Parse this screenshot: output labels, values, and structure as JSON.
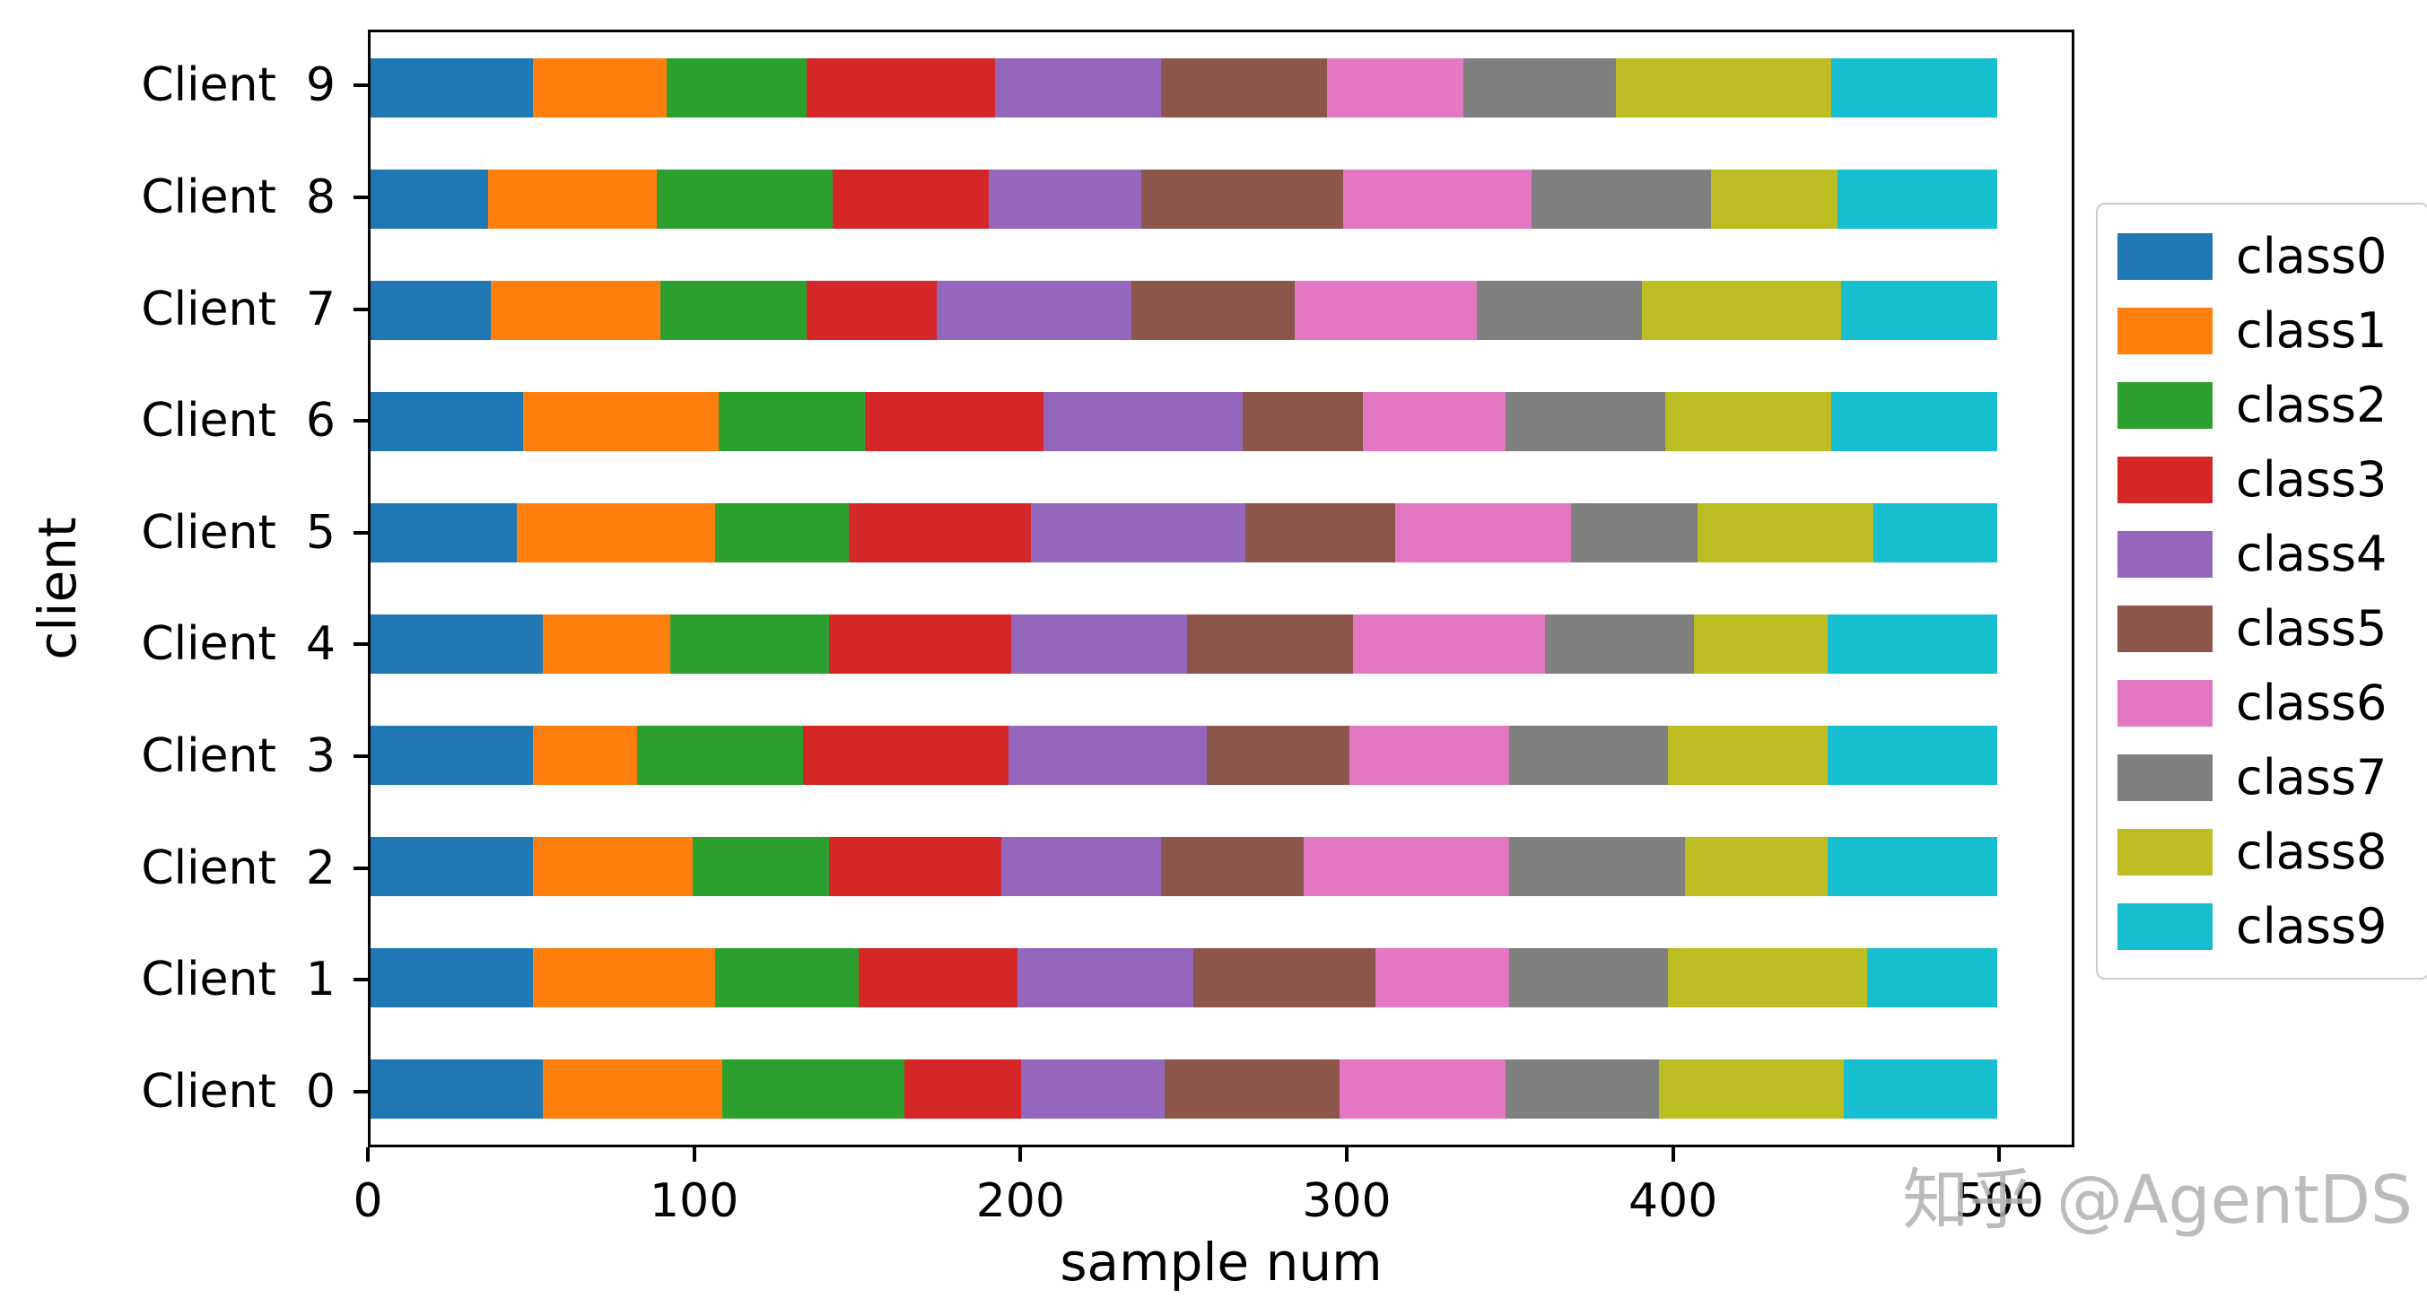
{
  "watermark": "知乎 @AgentDS",
  "chart_data": {
    "type": "bar",
    "orientation": "horizontal",
    "stacked": true,
    "title": "",
    "xlabel": "sample num",
    "ylabel": "client",
    "xlim": [
      0,
      523
    ],
    "grid": false,
    "legend_position": "right-outside",
    "x_tick_values": [
      0,
      100,
      200,
      300,
      400,
      500
    ],
    "x_ticks": [
      "0",
      "100",
      "200",
      "300",
      "400",
      "500"
    ],
    "categories": [
      "Client  0",
      "Client  1",
      "Client  2",
      "Client  3",
      "Client  4",
      "Client  5",
      "Client  6",
      "Client  7",
      "Client  8",
      "Client  9"
    ],
    "y_order_top_to_bottom": [
      "Client  9",
      "Client  8",
      "Client  7",
      "Client  6",
      "Client  5",
      "Client  4",
      "Client  3",
      "Client  2",
      "Client  1",
      "Client  0"
    ],
    "bar_total_per_client": 500,
    "series": [
      {
        "name": "class0",
        "color": "#1f77b4",
        "values": [
          53,
          50,
          50,
          50,
          53,
          45,
          47,
          37,
          36,
          50
        ]
      },
      {
        "name": "class1",
        "color": "#ff7f0e",
        "values": [
          55,
          56,
          49,
          32,
          39,
          61,
          60,
          52,
          52,
          41
        ]
      },
      {
        "name": "class2",
        "color": "#2ca02c",
        "values": [
          56,
          44,
          42,
          51,
          49,
          41,
          45,
          45,
          54,
          43
        ]
      },
      {
        "name": "class3",
        "color": "#d62728",
        "values": [
          36,
          49,
          53,
          63,
          56,
          56,
          55,
          40,
          48,
          58
        ]
      },
      {
        "name": "class4",
        "color": "#9467bd",
        "values": [
          44,
          54,
          49,
          61,
          54,
          66,
          61,
          60,
          47,
          51
        ]
      },
      {
        "name": "class5",
        "color": "#8c564b",
        "values": [
          54,
          56,
          44,
          44,
          51,
          46,
          37,
          50,
          62,
          51
        ]
      },
      {
        "name": "class6",
        "color": "#e377c2",
        "values": [
          51,
          41,
          63,
          49,
          59,
          54,
          44,
          56,
          58,
          42
        ]
      },
      {
        "name": "class7",
        "color": "#7f7f7f",
        "values": [
          47,
          49,
          54,
          49,
          46,
          39,
          49,
          51,
          55,
          47
        ]
      },
      {
        "name": "class8",
        "color": "#bcbd22",
        "values": [
          57,
          61,
          44,
          49,
          41,
          54,
          51,
          61,
          39,
          66
        ]
      },
      {
        "name": "class9",
        "color": "#17becf",
        "values": [
          47,
          40,
          52,
          52,
          52,
          38,
          51,
          48,
          49,
          51
        ]
      }
    ]
  }
}
